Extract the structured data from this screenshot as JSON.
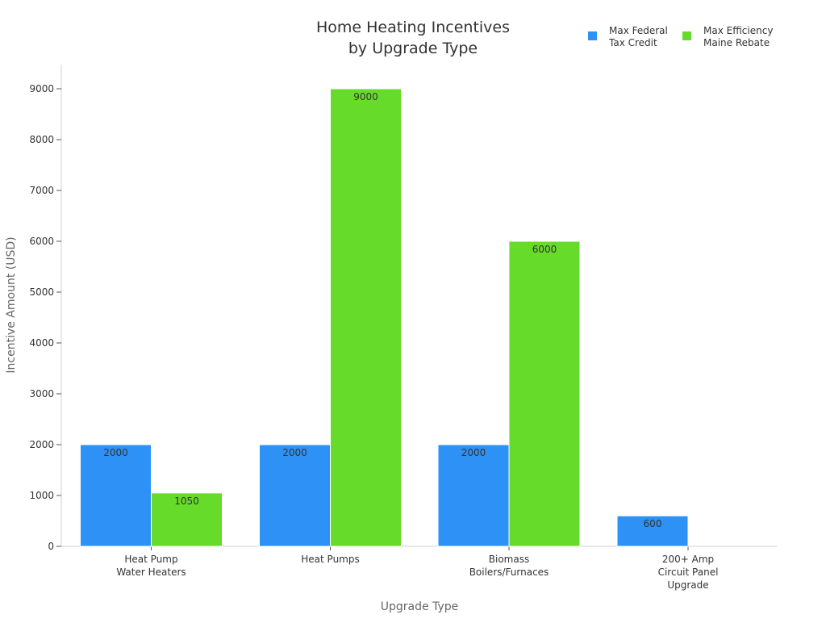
{
  "chart_data": {
    "type": "bar",
    "title_lines": [
      "Home Heating Incentives",
      "by Upgrade Type"
    ],
    "xlabel": "Upgrade Type",
    "ylabel": "Incentive Amount (USD)",
    "ylim": [
      0,
      9500
    ],
    "yticks": [
      0,
      1000,
      2000,
      3000,
      4000,
      5000,
      6000,
      7000,
      8000,
      9000
    ],
    "grid": false,
    "legend_position": "top-right",
    "categories": [
      [
        "Heat Pump",
        "Water Heaters"
      ],
      [
        "Heat Pumps"
      ],
      [
        "Biomass",
        "Boilers/Furnaces"
      ],
      [
        "200+ Amp",
        "Circuit Panel",
        "Upgrade"
      ]
    ],
    "series": [
      {
        "name_lines": [
          "Max Federal",
          "Tax Credit"
        ],
        "color": "#2e91f5",
        "values": [
          2000,
          2000,
          2000,
          600
        ]
      },
      {
        "name_lines": [
          "Max Efficiency",
          "Maine Rebate"
        ],
        "color": "#66db29",
        "values": [
          1050,
          9000,
          6000,
          null
        ]
      }
    ]
  }
}
